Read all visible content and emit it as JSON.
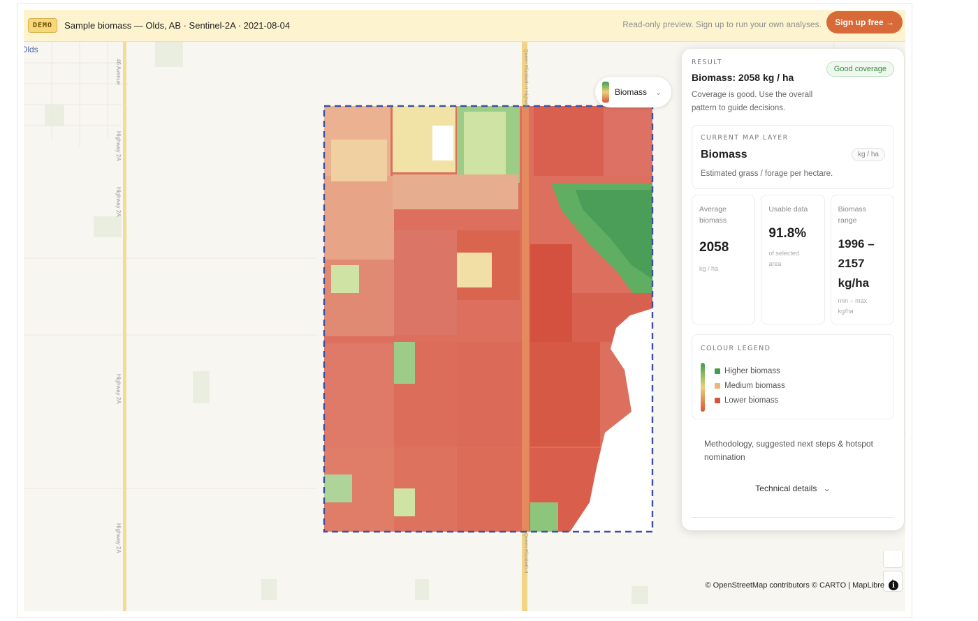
{
  "banner": {
    "badge": "DEMO",
    "title": "Sample biomass — Olds, AB · Sentinel-2A · 2021-08-04",
    "note": "Read-only preview. Sign up to run your own analyses.",
    "signup_label": "Sign up free →"
  },
  "map": {
    "place_label": "Olds",
    "road_labels": {
      "avenue": "46 Avenue",
      "hwy_a": "Highway 2A",
      "hwy_b": "Highway 2A",
      "hwy_c": "Highway 2A",
      "hwy_d": "Highway 2A",
      "qe_top": "Queen Elizabeth II Highway",
      "qe_bottom": "Queen Elizabeth II"
    },
    "attribution": "© OpenStreetMap contributors © CARTO | MapLibre",
    "info_glyph": "i",
    "nav_glyph": "▲",
    "colors": {
      "high": "#4a9e57",
      "medium": "#eedc9a",
      "low": "#d96150",
      "roi_border": "#3b4fa3"
    }
  },
  "layer_switch": {
    "label": "Biomass",
    "chevron": "⌄"
  },
  "panel": {
    "section_label": "RESULT",
    "coverage_badge": "Good coverage",
    "title": "Biomass: 2058 kg / ha",
    "description": "Coverage is good. Use the overall pattern to guide decisions.",
    "layer_card": {
      "label": "CURRENT MAP LAYER",
      "title": "Biomass",
      "unit": "kg / ha",
      "description": "Estimated grass / forage per hectare."
    },
    "stats": [
      {
        "label": "Average biomass",
        "value": "2058",
        "sub": "kg / ha"
      },
      {
        "label": "Usable data",
        "value": "91.8%",
        "sub": "of selected area"
      },
      {
        "label": "Biomass range",
        "value": "1996 – 2157 kg/ha",
        "sub": "min – max kg/ha"
      }
    ],
    "legend": {
      "label": "COLOUR LEGEND",
      "items": [
        {
          "label": "Higher biomass",
          "color": "#3f9f4f"
        },
        {
          "label": "Medium biomass",
          "color": "#e9b878"
        },
        {
          "label": "Lower biomass",
          "color": "#d8553a"
        }
      ]
    },
    "methodology": "Methodology, suggested next steps & hotspot nomination",
    "technical": "Technical details",
    "technical_chevron": "⌄"
  }
}
